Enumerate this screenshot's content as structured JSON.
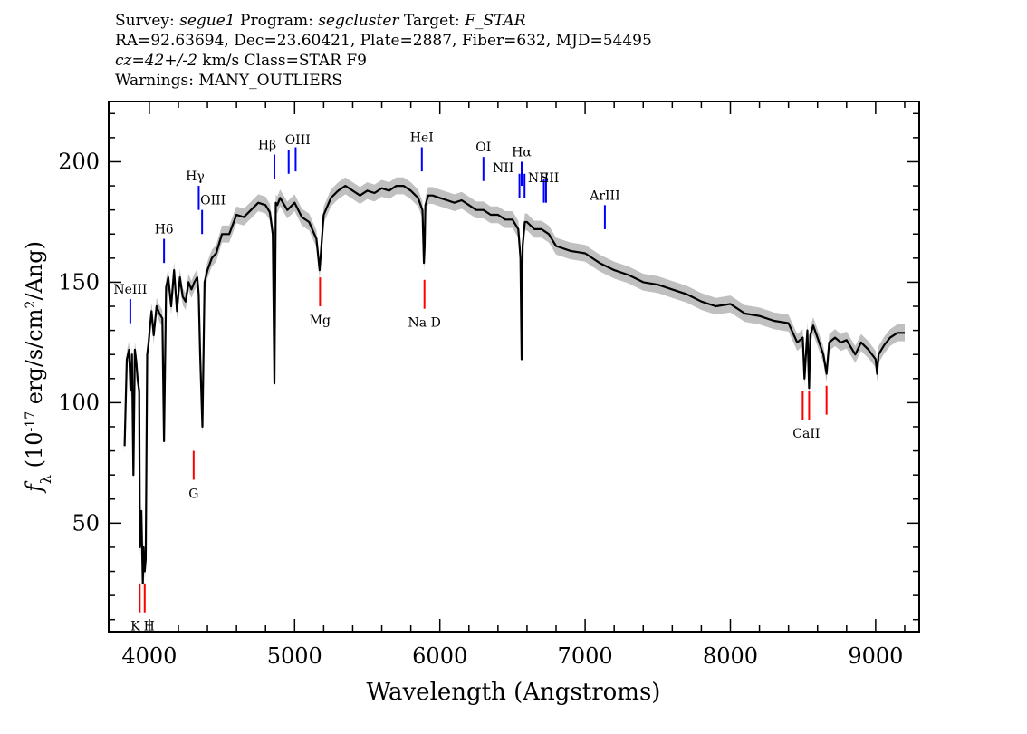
{
  "header": {
    "line1": {
      "survey_label": "Survey:",
      "survey": "segue1",
      "program_label": "Program:",
      "program": "segcluster",
      "target_label": "Target:",
      "target": "F_STAR"
    },
    "line2": "RA=92.63694, Dec=23.60421, Plate=2887, Fiber=632, MJD=54495",
    "line3": {
      "cz": "cz=42+/-2",
      "rest": "km/s Class=STAR F9"
    },
    "line4": "Warnings: MANY_OUTLIERS"
  },
  "chart_data": {
    "type": "line",
    "xlabel": "Wavelength (Angstroms)",
    "ylabel_parts": [
      "f",
      "λ",
      " (10",
      "-17",
      " erg/s/cm",
      "2",
      "/Ang)"
    ],
    "xlim": [
      3720,
      9300
    ],
    "ylim": [
      5,
      225
    ],
    "xticks": [
      4000,
      5000,
      6000,
      7000,
      8000,
      9000
    ],
    "yticks": [
      50,
      100,
      150,
      200
    ],
    "series": [
      {
        "color": "#000000",
        "error_color": "#c0c0c0",
        "x": [
          3830,
          3845,
          3860,
          3870,
          3880,
          3890,
          3900,
          3910,
          3920,
          3930,
          3935,
          3945,
          3955,
          3960,
          3968,
          3975,
          3985,
          3995,
          4005,
          4015,
          4030,
          4050,
          4070,
          4090,
          4101,
          4115,
          4130,
          4150,
          4170,
          4190,
          4210,
          4230,
          4250,
          4270,
          4290,
          4310,
          4330,
          4340,
          4350,
          4365,
          4380,
          4400,
          4430,
          4460,
          4500,
          4550,
          4600,
          4650,
          4700,
          4750,
          4800,
          4830,
          4850,
          4861,
          4870,
          4880,
          4900,
          4950,
          5000,
          5050,
          5100,
          5150,
          5172,
          5200,
          5250,
          5300,
          5350,
          5400,
          5450,
          5500,
          5550,
          5600,
          5650,
          5700,
          5750,
          5800,
          5850,
          5880,
          5890,
          5895,
          5900,
          5920,
          5950,
          6000,
          6050,
          6100,
          6150,
          6200,
          6250,
          6300,
          6350,
          6400,
          6450,
          6500,
          6540,
          6555,
          6563,
          6570,
          6585,
          6600,
          6650,
          6700,
          6750,
          6800,
          6900,
          7000,
          7100,
          7200,
          7300,
          7400,
          7500,
          7600,
          7700,
          7800,
          7900,
          8000,
          8100,
          8200,
          8300,
          8400,
          8460,
          8498,
          8510,
          8530,
          8542,
          8550,
          8570,
          8600,
          8640,
          8662,
          8680,
          8720,
          8760,
          8800,
          8860,
          8900,
          8950,
          9000,
          9010,
          9020,
          9060,
          9100,
          9150,
          9200
        ],
        "y": [
          82,
          118,
          122,
          105,
          120,
          70,
          122,
          117,
          109,
          105,
          40,
          55,
          25,
          40,
          30,
          35,
          120,
          125,
          132,
          138,
          128,
          140,
          137,
          135,
          84,
          148,
          152,
          140,
          155,
          138,
          152,
          144,
          142,
          150,
          147,
          150,
          152,
          145,
          120,
          90,
          150,
          155,
          160,
          162,
          170,
          170,
          178,
          177,
          180,
          183,
          182,
          179,
          170,
          108,
          183,
          182,
          185,
          180,
          183,
          177,
          175,
          168,
          155,
          178,
          185,
          188,
          190,
          188,
          186,
          188,
          187,
          189,
          188,
          190,
          190,
          188,
          185,
          180,
          158,
          165,
          182,
          186,
          186,
          185,
          184,
          183,
          184,
          182,
          180,
          180,
          178,
          178,
          176,
          176,
          172,
          160,
          118,
          165,
          175,
          175,
          172,
          172,
          170,
          165,
          163,
          162,
          158,
          155,
          153,
          150,
          149,
          147,
          145,
          142,
          140,
          141,
          137,
          136,
          134,
          133,
          125,
          127,
          110,
          130,
          106,
          128,
          132,
          127,
          120,
          112,
          125,
          127,
          125,
          126,
          120,
          125,
          122,
          118,
          112,
          120,
          124,
          127,
          129,
          129
        ],
        "error": 3.5
      }
    ],
    "line_annotations": {
      "emission_color": "#0000ff",
      "absorption_color": "#ff0000",
      "emission": [
        {
          "label": "NeIII",
          "x": 3869,
          "y1": 133,
          "y2": 143
        },
        {
          "label": "Hδ",
          "x": 4101,
          "y1": 158,
          "y2": 168
        },
        {
          "label": "Hγ",
          "x": 4340,
          "y1": 180,
          "y2": 190
        },
        {
          "label": "OIII",
          "x": 4363,
          "y1": 170,
          "y2": 180
        },
        {
          "label": "Hβ",
          "x": 4861,
          "y1": 193,
          "y2": 203
        },
        {
          "label": "OIII",
          "x": 4959,
          "y1": 195,
          "y2": 205
        },
        {
          "label": "",
          "x": 5007,
          "y1": 196,
          "y2": 206
        },
        {
          "label": "HeI",
          "x": 5876,
          "y1": 196,
          "y2": 206
        },
        {
          "label": "OI",
          "x": 6300,
          "y1": 192,
          "y2": 202
        },
        {
          "label": "NII",
          "x": 6548,
          "y1": 185,
          "y2": 195
        },
        {
          "label": "Hα",
          "x": 6563,
          "y1": 190,
          "y2": 200
        },
        {
          "label": "",
          "x": 6583,
          "y1": 185,
          "y2": 195
        },
        {
          "label": "NII",
          "x": 6716,
          "y1": 183,
          "y2": 193
        },
        {
          "label": "SII",
          "x": 6731,
          "y1": 183,
          "y2": 193
        },
        {
          "label": "ArIII",
          "x": 7136,
          "y1": 172,
          "y2": 182
        }
      ],
      "absorption": [
        {
          "label": "Mg",
          "x": 5175,
          "y1": 140,
          "y2": 152
        },
        {
          "label": "Na D",
          "x": 5894,
          "y1": 139,
          "y2": 151
        },
        {
          "label": "G",
          "x": 4305,
          "y1": 68,
          "y2": 80
        },
        {
          "label": "K",
          "x": 3934,
          "y1": 13,
          "y2": 25
        },
        {
          "label": "H",
          "x": 3968,
          "y1": 13,
          "y2": 25
        },
        {
          "label": "CaII",
          "x": 8498,
          "y1": 93,
          "y2": 105
        },
        {
          "label": "",
          "x": 8542,
          "y1": 93,
          "y2": 105
        },
        {
          "label": "",
          "x": 8662,
          "y1": 95,
          "y2": 107
        }
      ]
    }
  }
}
